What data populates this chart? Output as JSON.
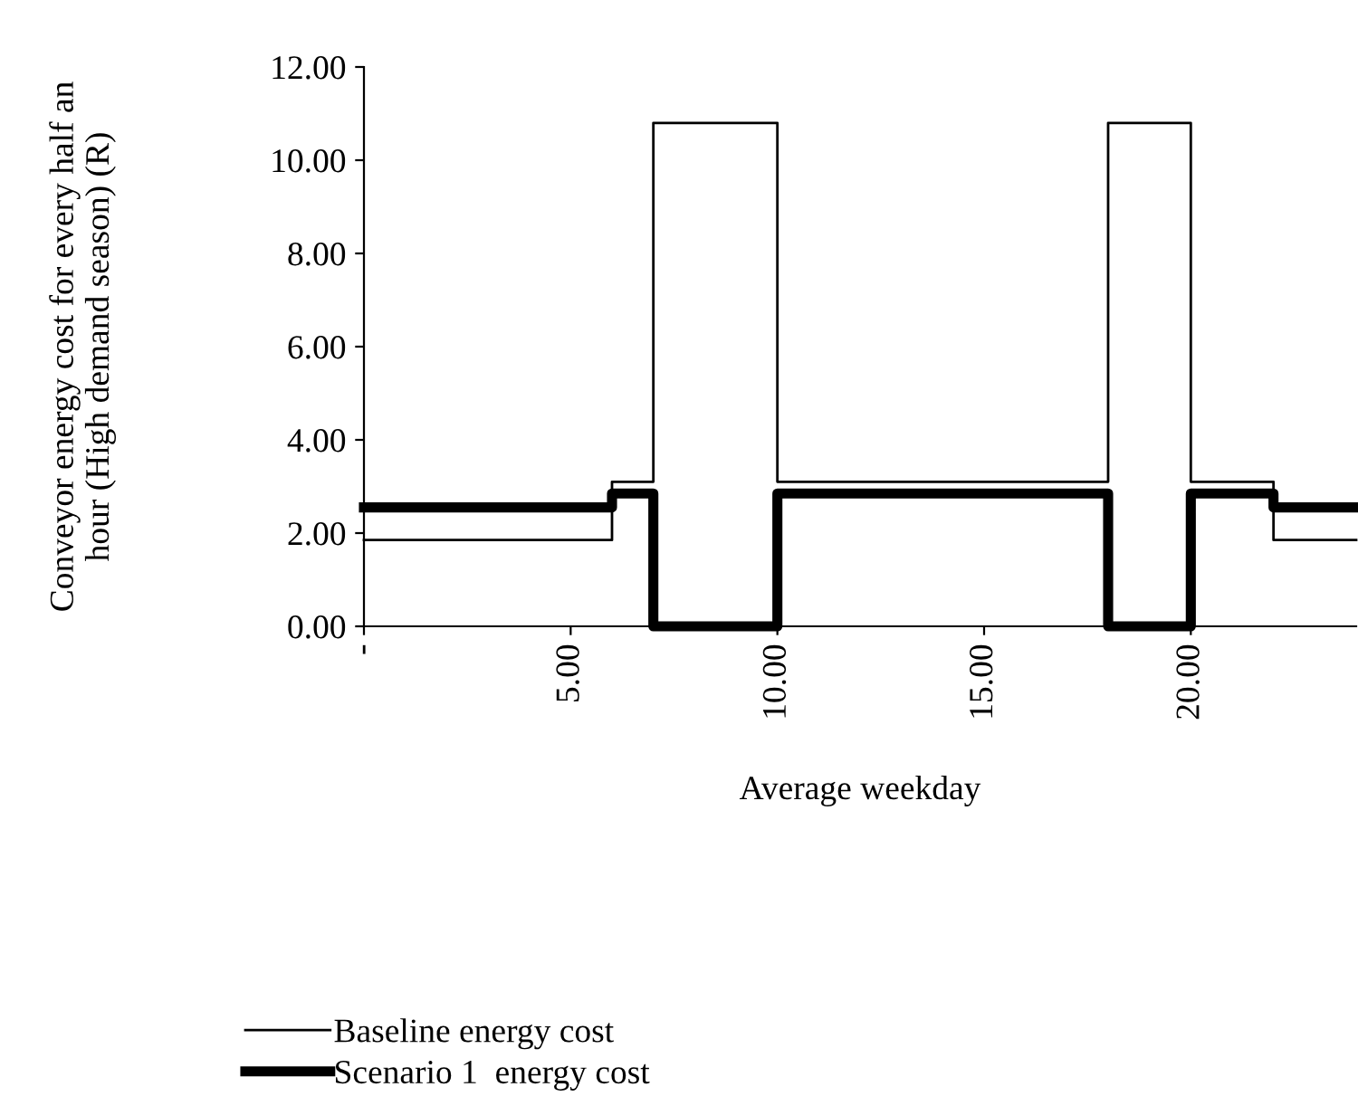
{
  "chart_data": {
    "type": "step",
    "xlabel": "Average weekday",
    "ylabel": "Conveyor energy cost for every half an\nhour (High demand season) (R)",
    "x": [
      0,
      6,
      7,
      10,
      18,
      20,
      22,
      24
    ],
    "series": [
      {
        "name": "Baseline energy cost",
        "color": "#000000",
        "values": [
          1.85,
          3.1,
          10.8,
          3.1,
          10.8,
          3.1,
          1.85,
          1.85
        ]
      },
      {
        "name": "Scenario 1  energy cost",
        "color": "#000000",
        "values": [
          2.55,
          2.85,
          0,
          2.85,
          0,
          2.85,
          2.55,
          2.55
        ]
      }
    ],
    "xlim": [
      0,
      24
    ],
    "xticks": [
      {
        "value": 0,
        "label": "-"
      },
      {
        "value": 5,
        "label": "5.00"
      },
      {
        "value": 10,
        "label": "10.00"
      },
      {
        "value": 15,
        "label": "15.00"
      },
      {
        "value": 20,
        "label": "20.00"
      }
    ],
    "ylim": [
      0,
      12
    ],
    "yticks": [
      {
        "value": 0,
        "label": "0.00"
      },
      {
        "value": 2,
        "label": "2.00"
      },
      {
        "value": 4,
        "label": "4.00"
      },
      {
        "value": 6,
        "label": "6.00"
      },
      {
        "value": 8,
        "label": "8.00"
      },
      {
        "value": 10,
        "label": "10.00"
      },
      {
        "value": 12,
        "label": "12.00"
      }
    ],
    "grid": false,
    "legend": "bottom",
    "marker": "none",
    "line_style": "solid"
  }
}
